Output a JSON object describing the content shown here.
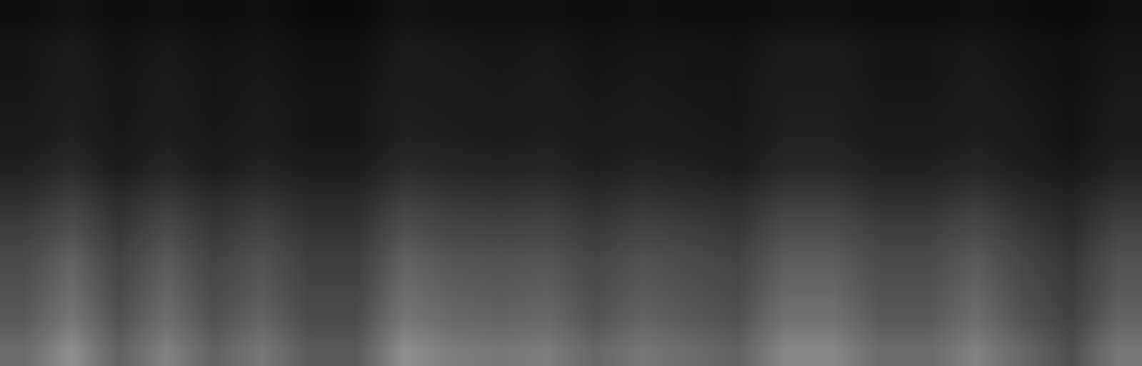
{
  "chart_data": {
    "type": "heatmap",
    "z": [
      [
        42,
        56,
        38,
        51,
        38,
        47,
        35,
        35,
        56,
        49,
        47,
        49,
        40,
        47,
        42,
        38,
        53,
        53,
        42,
        42,
        51,
        40,
        31,
        47
      ],
      [
        35,
        47,
        32,
        43,
        32,
        39,
        30,
        30,
        47,
        41,
        39,
        41,
        33,
        39,
        35,
        32,
        45,
        45,
        35,
        35,
        43,
        33,
        26,
        39
      ],
      [
        32,
        42,
        29,
        39,
        29,
        35,
        27,
        27,
        42,
        37,
        35,
        37,
        30,
        35,
        32,
        29,
        40,
        40,
        32,
        32,
        39,
        30,
        23,
        35
      ],
      [
        29,
        38,
        26,
        35,
        26,
        32,
        24,
        24,
        38,
        33,
        32,
        33,
        27,
        32,
        29,
        26,
        36,
        36,
        29,
        29,
        35,
        27,
        21,
        32
      ],
      [
        24,
        31,
        21,
        29,
        21,
        26,
        20,
        20,
        31,
        27,
        26,
        27,
        22,
        26,
        24,
        21,
        30,
        30,
        24,
        24,
        29,
        22,
        17,
        26
      ],
      [
        18,
        24,
        17,
        22,
        17,
        20,
        16,
        16,
        24,
        21,
        20,
        21,
        17,
        20,
        18,
        17,
        23,
        23,
        18,
        18,
        22,
        17,
        14,
        20
      ],
      [
        13,
        17,
        11,
        15,
        11,
        14,
        11,
        11,
        17,
        15,
        14,
        15,
        12,
        14,
        13,
        11,
        16,
        16,
        13,
        13,
        15,
        12,
        9,
        14
      ],
      [
        10,
        13,
        9,
        12,
        9,
        11,
        8,
        8,
        13,
        12,
        11,
        12,
        10,
        11,
        10,
        9,
        13,
        13,
        10,
        10,
        12,
        10,
        7,
        11
      ],
      [
        9,
        12,
        8,
        11,
        8,
        10,
        8,
        8,
        12,
        11,
        10,
        11,
        9,
        10,
        9,
        8,
        12,
        12,
        9,
        9,
        11,
        9,
        7,
        10
      ],
      [
        8,
        11,
        8,
        10,
        8,
        9,
        7,
        7,
        11,
        10,
        9,
        10,
        8,
        9,
        8,
        8,
        11,
        11,
        8,
        8,
        10,
        8,
        6,
        9
      ],
      [
        8,
        10,
        7,
        9,
        7,
        8,
        6,
        6,
        10,
        9,
        8,
        9,
        7,
        8,
        8,
        7,
        10,
        10,
        8,
        8,
        9,
        7,
        6,
        8
      ],
      [
        5,
        7,
        5,
        6,
        5,
        6,
        4,
        4,
        7,
        6,
        6,
        6,
        5,
        6,
        5,
        5,
        6,
        6,
        5,
        5,
        6,
        5,
        4,
        6
      ]
    ],
    "zlim": [
      0,
      100
    ],
    "tick_labels": false,
    "grid": false
  }
}
